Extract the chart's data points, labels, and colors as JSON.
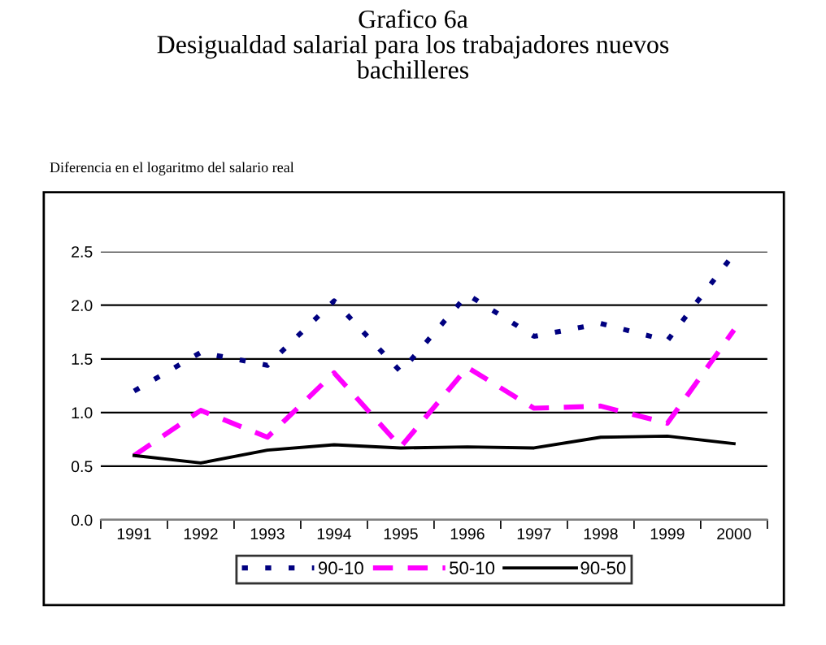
{
  "chart_data": {
    "type": "line",
    "title": "Grafico 6a\nDesigualdad salarial para los trabajadores nuevos\nbachilleres",
    "annotations": [
      "Diferencia en el logaritmo del salario real"
    ],
    "categories": [
      "1991",
      "1992",
      "1993",
      "1994",
      "1995",
      "1996",
      "1997",
      "1998",
      "1999",
      "2000"
    ],
    "series": [
      {
        "name": "90-10",
        "color": "#000080",
        "line_style": "dotted",
        "values": [
          1.2,
          1.56,
          1.44,
          2.04,
          1.38,
          2.1,
          1.71,
          1.83,
          1.67,
          2.48
        ]
      },
      {
        "name": "50-10",
        "color": "#ff00ff",
        "line_style": "dashed",
        "values": [
          0.6,
          1.02,
          0.77,
          1.37,
          0.68,
          1.42,
          1.04,
          1.06,
          0.9,
          1.77
        ]
      },
      {
        "name": "90-50",
        "color": "#000000",
        "line_style": "solid",
        "values": [
          0.6,
          0.53,
          0.65,
          0.7,
          0.67,
          0.68,
          0.67,
          0.77,
          0.78,
          0.71
        ]
      }
    ],
    "ylim": [
      0,
      2.5
    ],
    "yticks": [
      {
        "value": 0,
        "label": "0.0"
      },
      0.5,
      {
        "value": 1,
        "label": "1.0"
      },
      1.5,
      {
        "value": 2,
        "label": "2.0"
      },
      2.5
    ],
    "grid": "y",
    "legend": "bottom",
    "marker": "none"
  }
}
